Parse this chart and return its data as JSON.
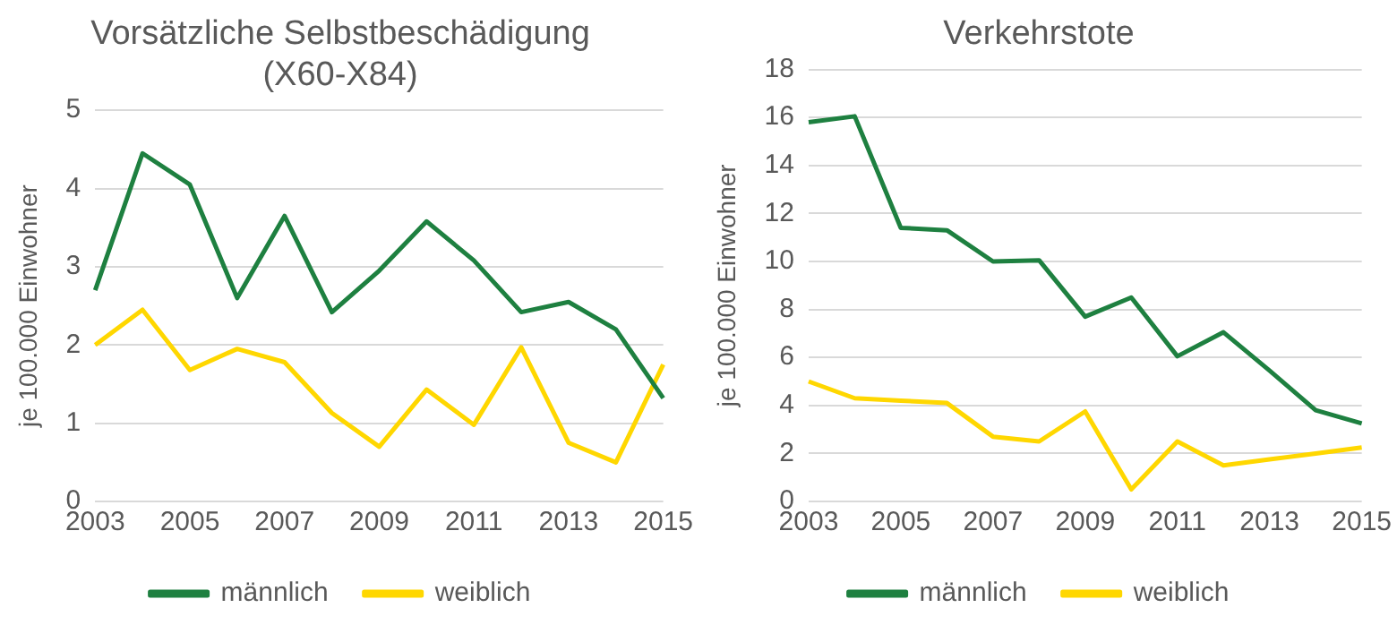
{
  "chart_data": [
    {
      "type": "line",
      "title": "Vorsätzliche Selbstbeschädigung\n(X60-X84)",
      "ylabel": "je 100.000 Einwohner",
      "categories": [
        "2003",
        null,
        "2005",
        null,
        "2007",
        null,
        "2009",
        null,
        "2011",
        null,
        "2013",
        null,
        "2015"
      ],
      "series": [
        {
          "name": "männlich",
          "color": "#1e8040",
          "values": [
            2.7,
            4.45,
            4.05,
            2.6,
            3.65,
            2.42,
            2.95,
            3.58,
            3.08,
            2.42,
            2.55,
            2.2,
            1.32
          ]
        },
        {
          "name": "weiblich",
          "color": "#ffd700",
          "values": [
            2.0,
            2.45,
            1.68,
            1.95,
            1.78,
            1.13,
            0.7,
            1.43,
            0.98,
            1.97,
            0.75,
            0.5,
            1.75
          ]
        }
      ],
      "ylim": [
        0,
        5
      ],
      "yticks": [
        0,
        1,
        2,
        3,
        4,
        5
      ],
      "grid": "y",
      "legend": "bottom",
      "marker": "none",
      "line_style": "solid"
    },
    {
      "type": "line",
      "title": "Verkehrstote",
      "ylabel": "je 100.000 Einwohner",
      "categories": [
        "2003",
        null,
        "2005",
        null,
        "2007",
        null,
        "2009",
        null,
        "2011",
        null,
        "2013",
        null,
        "2015"
      ],
      "series": [
        {
          "name": "männlich",
          "color": "#1e8040",
          "values": [
            15.8,
            16.05,
            11.4,
            11.3,
            10.0,
            10.05,
            7.7,
            8.5,
            6.05,
            7.05,
            5.45,
            3.8,
            3.25
          ]
        },
        {
          "name": "weiblich",
          "color": "#ffd700",
          "values": [
            5.0,
            4.3,
            4.2,
            4.1,
            2.7,
            2.5,
            3.75,
            0.5,
            2.5,
            1.5,
            1.75,
            2.0,
            2.25
          ]
        }
      ],
      "ylim": [
        0,
        18
      ],
      "yticks": [
        0,
        2,
        4,
        6,
        8,
        10,
        12,
        14,
        16,
        18
      ],
      "grid": "y",
      "legend": "bottom",
      "marker": "none",
      "line_style": "solid"
    }
  ]
}
